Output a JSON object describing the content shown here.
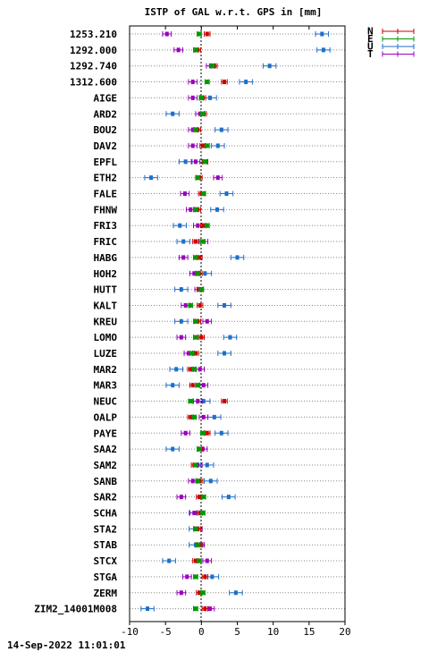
{
  "chart_data": {
    "type": "scatter",
    "title": "ISTP of GAL w.r.t. GPS in [mm]",
    "xlabel": "",
    "ylabel": "",
    "xlim": [
      -10,
      20
    ],
    "x_ticks": [
      "-10",
      "-5",
      "0",
      "5",
      "10",
      "15",
      "20"
    ],
    "grid": "horizontal dotted lines per station",
    "legend_position": "top-right, outside plot",
    "series": [
      {
        "name": "N",
        "color": "#cc0000",
        "err": 0.4
      },
      {
        "name": "E",
        "color": "#009900",
        "err": 0.3
      },
      {
        "name": "U",
        "color": "#1e6fc8",
        "err": 0.9
      },
      {
        "name": "T",
        "color": "#9900bb",
        "err": 0.6
      }
    ],
    "stations": [
      {
        "name": "1253.210",
        "N": 0.8,
        "E": -0.3,
        "U": 16.8,
        "T": -4.8
      },
      {
        "name": "1292.000",
        "N": -0.5,
        "E": -0.8,
        "U": 17.0,
        "T": -3.2
      },
      {
        "name": "1292.740",
        "N": 1.8,
        "E": 1.5,
        "U": 9.5,
        "T": 1.3
      },
      {
        "name": "1312.600",
        "N": 3.2,
        "E": 0.8,
        "U": 6.2,
        "T": -1.2
      },
      {
        "name": "AIGE",
        "N": 0.2,
        "E": 0.0,
        "U": 1.2,
        "T": -1.2
      },
      {
        "name": "ARD2",
        "N": 0.3,
        "E": 0.2,
        "U": -4.0,
        "T": -0.2
      },
      {
        "name": "BOU2",
        "N": -0.5,
        "E": -0.8,
        "U": 2.8,
        "T": -1.2
      },
      {
        "name": "DAV2",
        "N": 0.2,
        "E": 0.8,
        "U": 2.3,
        "T": -1.2
      },
      {
        "name": "EPFL",
        "N": 0.5,
        "E": 0.5,
        "U": -2.2,
        "T": -0.8
      },
      {
        "name": "ETH2",
        "N": -0.3,
        "E": -0.5,
        "U": -7.0,
        "T": 2.3
      },
      {
        "name": "FALE",
        "N": 0.0,
        "E": 0.3,
        "U": 3.5,
        "T": -2.3
      },
      {
        "name": "FHNW",
        "N": -0.5,
        "E": -0.8,
        "U": 2.2,
        "T": -1.5
      },
      {
        "name": "FRI3",
        "N": 0.3,
        "E": 0.8,
        "U": -3.0,
        "T": -0.5
      },
      {
        "name": "FRIC",
        "N": -0.8,
        "E": 0.2,
        "U": -2.5,
        "T": 0.3
      },
      {
        "name": "HABG",
        "N": -0.3,
        "E": -0.8,
        "U": 5.0,
        "T": -2.5
      },
      {
        "name": "HOH2",
        "N": -0.3,
        "E": -0.5,
        "U": 0.5,
        "T": -1.0
      },
      {
        "name": "HUTT",
        "N": -0.2,
        "E": 0.0,
        "U": -2.8,
        "T": -0.3
      },
      {
        "name": "KALT",
        "N": -0.2,
        "E": -1.5,
        "U": 3.2,
        "T": -2.2
      },
      {
        "name": "KREU",
        "N": -0.5,
        "E": -0.8,
        "U": -2.8,
        "T": 0.8
      },
      {
        "name": "LOMO",
        "N": 0.0,
        "E": -0.8,
        "U": 4.0,
        "T": -2.8
      },
      {
        "name": "LUZE",
        "N": -0.8,
        "E": -1.3,
        "U": 3.2,
        "T": -1.8
      },
      {
        "name": "MAR2",
        "N": -1.5,
        "E": -1.0,
        "U": -3.5,
        "T": -0.2
      },
      {
        "name": "MAR3",
        "N": -1.2,
        "E": -0.5,
        "U": -4.0,
        "T": 0.3
      },
      {
        "name": "NEUC",
        "N": 3.2,
        "E": -1.5,
        "U": 0.3,
        "T": -0.5
      },
      {
        "name": "OALP",
        "N": -1.5,
        "E": -1.0,
        "U": 1.8,
        "T": 0.3
      },
      {
        "name": "PAYE",
        "N": 0.8,
        "E": 0.2,
        "U": 2.8,
        "T": -2.2
      },
      {
        "name": "SAA2",
        "N": -0.2,
        "E": -0.3,
        "U": -4.0,
        "T": 0.2
      },
      {
        "name": "SAM2",
        "N": -1.0,
        "E": -0.8,
        "U": 0.8,
        "T": -0.5
      },
      {
        "name": "SANB",
        "N": -0.2,
        "E": -0.5,
        "U": 1.3,
        "T": -1.2
      },
      {
        "name": "SAR2",
        "N": -0.3,
        "E": 0.3,
        "U": 3.8,
        "T": -2.8
      },
      {
        "name": "SCHA",
        "N": -0.2,
        "E": 0.2,
        "U": -0.8,
        "T": -1.0
      },
      {
        "name": "STA2",
        "N": -0.5,
        "E": -0.8,
        "U": -0.8,
        "T": -0.5
      },
      {
        "name": "STAB",
        "N": -0.2,
        "E": -0.5,
        "U": -0.8,
        "T": -0.2
      },
      {
        "name": "STCX",
        "N": -0.8,
        "E": -0.3,
        "U": -4.5,
        "T": 0.8
      },
      {
        "name": "STGA",
        "N": 0.5,
        "E": -0.8,
        "U": 1.5,
        "T": -2.0
      },
      {
        "name": "ZERM",
        "N": -0.3,
        "E": 0.2,
        "U": 4.8,
        "T": -2.8
      },
      {
        "name": "ZIM2_14001M008",
        "N": 0.5,
        "E": -0.8,
        "U": -7.5,
        "T": 1.2
      }
    ]
  },
  "footer": {
    "timestamp": "14-Sep-2022 11:01:01"
  }
}
